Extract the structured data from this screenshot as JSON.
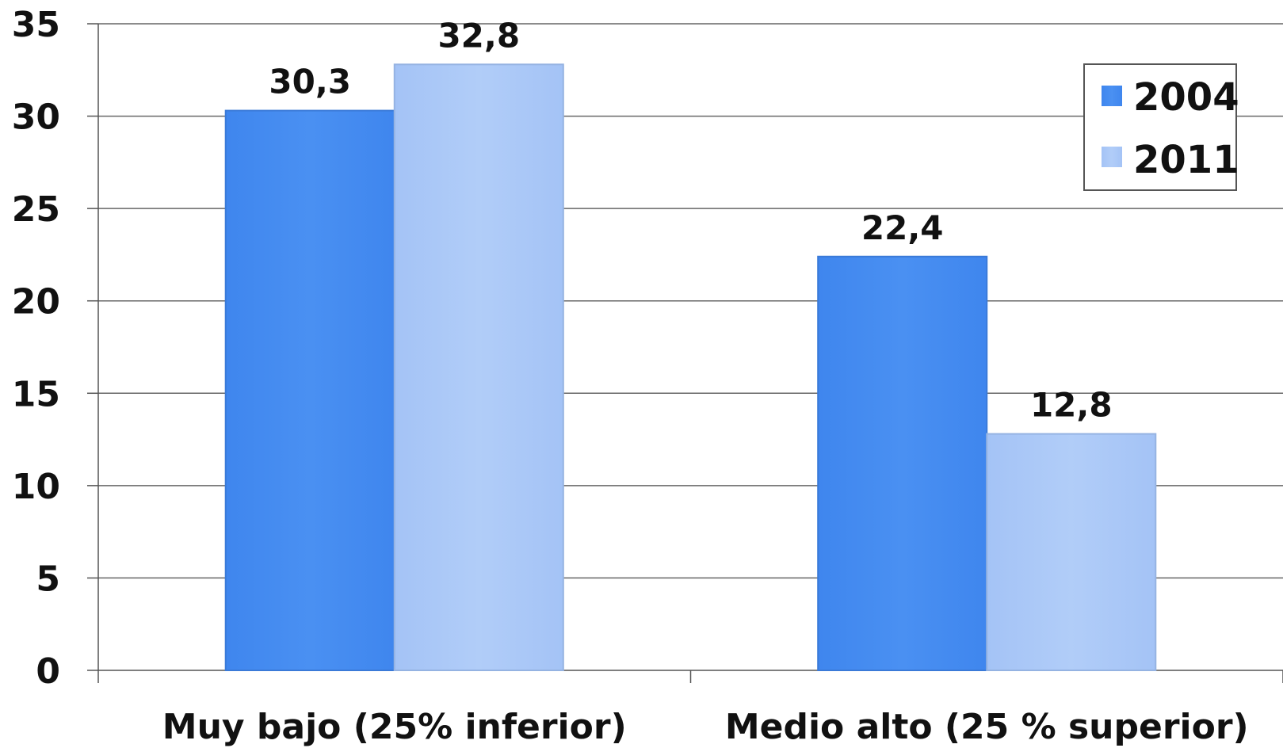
{
  "chart_data": {
    "type": "bar",
    "categories": [
      "Muy bajo (25% inferior)",
      "Medio alto (25 % superior)"
    ],
    "series": [
      {
        "name": "2004",
        "values": [
          30.3,
          22.4
        ],
        "labels": [
          "30,3",
          "22,4"
        ],
        "color": "#4a8ef0"
      },
      {
        "name": "2011",
        "values": [
          32.8,
          12.8
        ],
        "labels": [
          "32,8",
          "12,8"
        ],
        "color": "#a9c8f7"
      }
    ],
    "ylim": [
      0,
      35
    ],
    "yticks": [
      0,
      5,
      10,
      15,
      20,
      25,
      30,
      35
    ],
    "grid": true,
    "legend_position": "top-right",
    "title": "",
    "xlabel": "",
    "ylabel": ""
  }
}
